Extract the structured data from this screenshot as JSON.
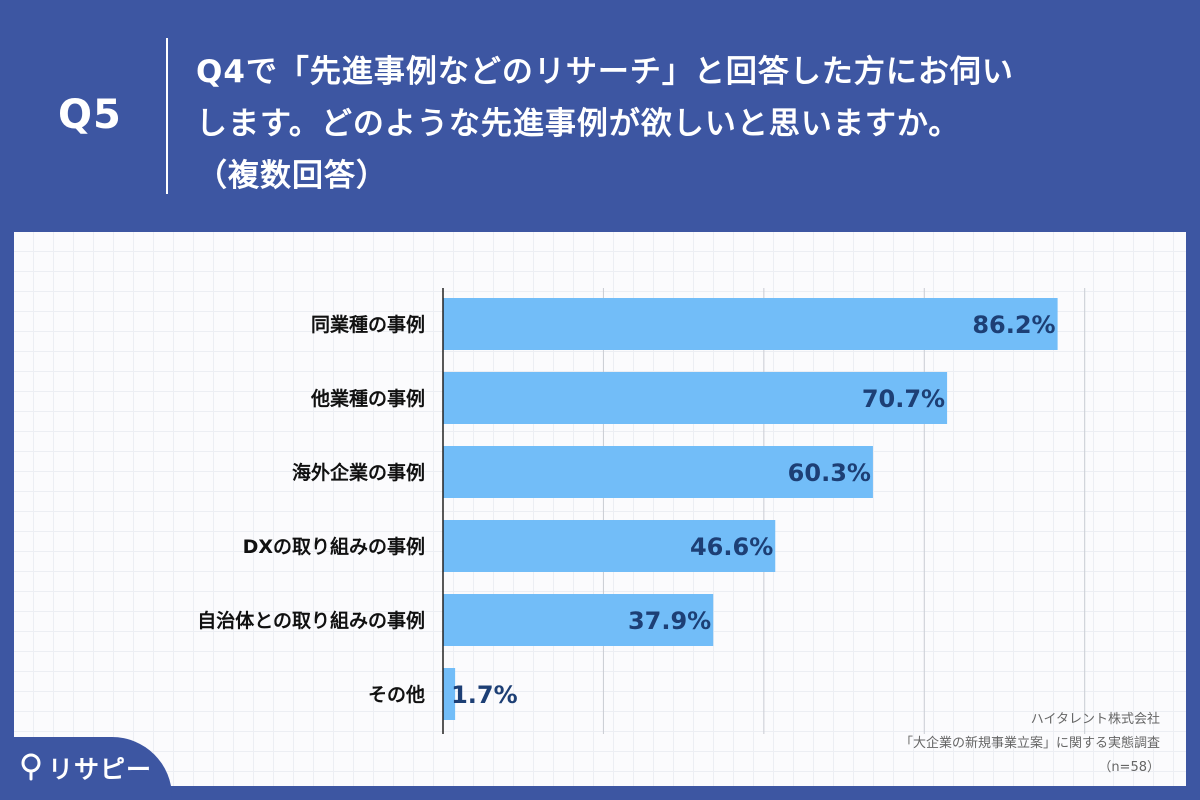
{
  "header": {
    "q_label": "Q5",
    "question_lines": [
      "Q4で「先進事例などのリサーチ」と回答した方にお伺い",
      "します。どのような先進事例が欲しいと思いますか。",
      "（複数回答）"
    ]
  },
  "source": {
    "company": "ハイタレント株式会社",
    "survey": "「大企業の新規事業立案」に関する実態調査",
    "sample": "（n=58）"
  },
  "logo": {
    "text": "リサピー",
    "icon": "pin-icon"
  },
  "colors": {
    "background": "#3d56a2",
    "bar": "#72bdf8",
    "value_text": "#1d3f75"
  },
  "chart_data": {
    "type": "bar",
    "orientation": "horizontal",
    "categories": [
      "同業種の事例",
      "他業種の事例",
      "海外企業の事例",
      "DXの取り組みの事例",
      "自治体との取り組みの事例",
      "その他"
    ],
    "values": [
      86.2,
      70.7,
      60.3,
      46.6,
      37.9,
      1.7
    ],
    "value_labels": [
      "86.2%",
      "70.7%",
      "60.3%",
      "46.6%",
      "37.9%",
      "1.7%"
    ],
    "xlim": [
      0,
      90
    ],
    "grid": true,
    "legend": "none"
  }
}
